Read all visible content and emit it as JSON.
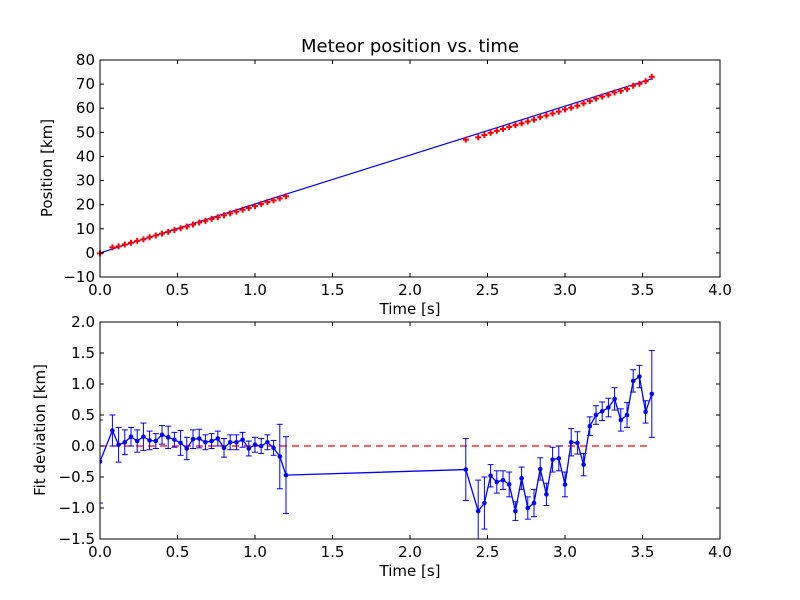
{
  "chart_data": [
    {
      "type": "scatter",
      "title": "Meteor position vs. time",
      "xlabel": "Time [s]",
      "ylabel": "Position [km]",
      "xlim": [
        0.0,
        4.0
      ],
      "ylim": [
        -10,
        80
      ],
      "xticks": [
        "0.0",
        "0.5",
        "1.0",
        "1.5",
        "2.0",
        "2.5",
        "3.0",
        "3.5",
        "4.0"
      ],
      "yticks": [
        "−10",
        "0",
        "10",
        "20",
        "30",
        "40",
        "50",
        "60",
        "70",
        "80"
      ],
      "grid": false,
      "series": [
        {
          "kind": "markers",
          "color": "#ff0000",
          "marker": "plus",
          "x": [
            0.0,
            0.08,
            0.12,
            0.16,
            0.2,
            0.24,
            0.28,
            0.32,
            0.36,
            0.4,
            0.44,
            0.48,
            0.52,
            0.56,
            0.6,
            0.64,
            0.68,
            0.72,
            0.76,
            0.8,
            0.84,
            0.88,
            0.92,
            0.96,
            1.0,
            1.04,
            1.08,
            1.12,
            1.16,
            1.2,
            2.36,
            2.44,
            2.48,
            2.52,
            2.56,
            2.6,
            2.64,
            2.68,
            2.72,
            2.76,
            2.8,
            2.84,
            2.88,
            2.92,
            2.96,
            3.0,
            3.04,
            3.08,
            3.12,
            3.16,
            3.2,
            3.24,
            3.28,
            3.32,
            3.36,
            3.4,
            3.44,
            3.48,
            3.52,
            3.56
          ],
          "y": [
            -0.2,
            2.3,
            2.7,
            3.5,
            4.2,
            5.0,
            5.6,
            6.5,
            7.2,
            8.0,
            8.7,
            9.5,
            10.2,
            10.9,
            11.8,
            12.6,
            13.3,
            14.1,
            14.8,
            15.6,
            16.4,
            17.1,
            17.9,
            18.6,
            19.4,
            20.3,
            21.1,
            21.8,
            22.6,
            23.5,
            47.0,
            47.9,
            48.9,
            49.8,
            50.6,
            51.4,
            52.2,
            53.0,
            53.7,
            54.5,
            55.2,
            56.3,
            57.0,
            57.8,
            58.6,
            59.5,
            60.2,
            61.0,
            62.0,
            63.0,
            64.0,
            64.8,
            65.6,
            66.5,
            67.2,
            68.0,
            69.3,
            70.1,
            71.2,
            73.0
          ]
        },
        {
          "kind": "fit-line",
          "color": "#0000ff",
          "x": [
            0.0,
            3.56
          ],
          "y": [
            0.0,
            72.2
          ]
        }
      ]
    },
    {
      "type": "line",
      "xlabel": "Time [s]",
      "ylabel": "Fit deviation [km]",
      "xlim": [
        0.0,
        4.0
      ],
      "ylim": [
        -1.5,
        2.0
      ],
      "xticks": [
        "0.0",
        "0.5",
        "1.0",
        "1.5",
        "2.0",
        "2.5",
        "3.0",
        "3.5",
        "4.0"
      ],
      "yticks": [
        "−1.5",
        "−1.0",
        "−0.5",
        "0.0",
        "0.5",
        "1.0",
        "1.5",
        "2.0"
      ],
      "grid": false,
      "series": [
        {
          "kind": "errorbar-line",
          "color": "#0000ff",
          "x": [
            0.0,
            0.08,
            0.12,
            0.16,
            0.2,
            0.24,
            0.28,
            0.32,
            0.36,
            0.4,
            0.44,
            0.48,
            0.52,
            0.56,
            0.6,
            0.64,
            0.68,
            0.72,
            0.76,
            0.8,
            0.84,
            0.88,
            0.92,
            0.96,
            1.0,
            1.04,
            1.08,
            1.12,
            1.16,
            1.2,
            2.36,
            2.44,
            2.48,
            2.52,
            2.56,
            2.6,
            2.64,
            2.68,
            2.72,
            2.76,
            2.8,
            2.84,
            2.88,
            2.92,
            2.96,
            3.0,
            3.04,
            3.08,
            3.12,
            3.16,
            3.2,
            3.24,
            3.28,
            3.32,
            3.36,
            3.4,
            3.44,
            3.48,
            3.52,
            3.56
          ],
          "y": [
            -0.25,
            0.25,
            0.02,
            0.06,
            0.15,
            0.08,
            0.15,
            0.09,
            0.08,
            0.18,
            0.14,
            0.1,
            0.05,
            -0.04,
            0.11,
            0.12,
            0.06,
            0.08,
            0.12,
            -0.03,
            0.06,
            0.06,
            0.1,
            -0.04,
            0.02,
            0.0,
            0.06,
            -0.03,
            -0.17,
            -0.47,
            -0.38,
            -1.05,
            -0.92,
            -0.48,
            -0.58,
            -0.55,
            -0.62,
            -1.05,
            -0.52,
            -1.0,
            -0.92,
            -0.37,
            -0.78,
            -0.22,
            -0.2,
            -0.62,
            0.06,
            0.05,
            -0.3,
            0.32,
            0.5,
            0.56,
            0.62,
            0.76,
            0.42,
            0.5,
            1.05,
            1.12,
            0.55,
            0.84
          ],
          "yerr": [
            0.67,
            0.25,
            0.28,
            0.2,
            0.15,
            0.18,
            0.22,
            0.15,
            0.12,
            0.15,
            0.18,
            0.12,
            0.2,
            0.18,
            0.15,
            0.15,
            0.12,
            0.12,
            0.12,
            0.15,
            0.12,
            0.12,
            0.12,
            0.12,
            0.12,
            0.12,
            0.12,
            0.12,
            0.52,
            0.62,
            0.5,
            0.5,
            0.42,
            0.18,
            0.18,
            0.15,
            0.2,
            0.15,
            0.18,
            0.18,
            0.22,
            0.18,
            0.18,
            0.2,
            0.2,
            0.2,
            0.22,
            0.18,
            0.18,
            0.15,
            0.15,
            0.15,
            0.15,
            0.18,
            0.18,
            0.2,
            0.18,
            0.18,
            0.18,
            0.7
          ]
        },
        {
          "kind": "reference-line",
          "color": "#ff0000",
          "style": "dashed",
          "x": [
            0.0,
            3.56
          ],
          "y": [
            0.0,
            0.0
          ]
        }
      ]
    }
  ]
}
